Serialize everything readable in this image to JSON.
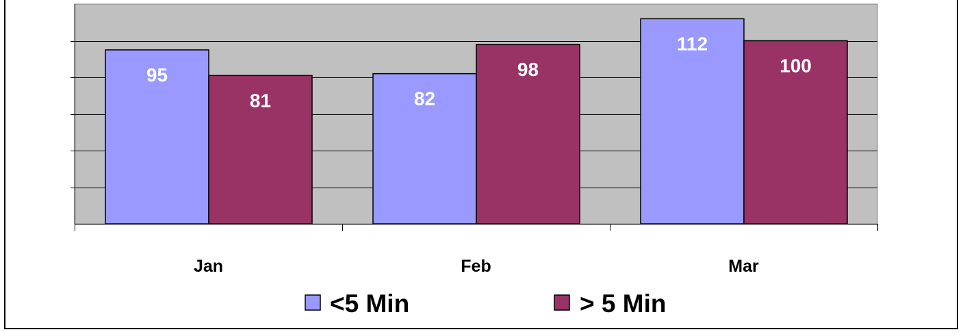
{
  "chart_data": {
    "type": "bar",
    "categories": [
      "Jan",
      "Feb",
      "Mar"
    ],
    "series": [
      {
        "name": "<5 Min",
        "values": [
          95,
          82,
          112
        ],
        "color": "#9999FF"
      },
      {
        "name": "> 5 Min",
        "values": [
          81,
          98,
          100
        ],
        "color": "#993366"
      }
    ],
    "title": "",
    "xlabel": "",
    "ylabel": "",
    "ylim": [
      0,
      120
    ],
    "grid": true,
    "plot_background": "#C0C0C0",
    "legend_position": "bottom",
    "data_labels": true
  }
}
